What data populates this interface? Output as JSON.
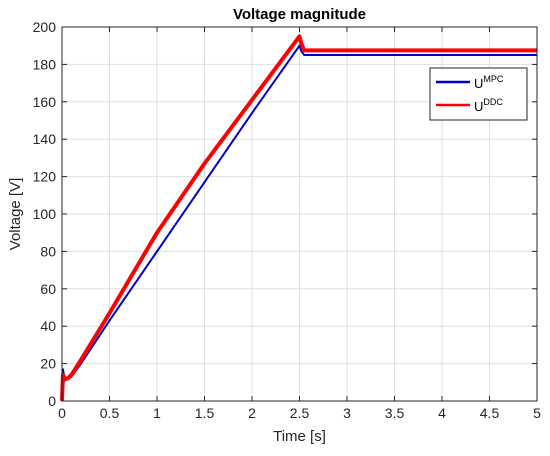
{
  "chart_data": {
    "type": "line",
    "title": "Voltage magnitude",
    "xlabel": "Time [s]",
    "ylabel": "Voltage [V]",
    "xlim": [
      0,
      5
    ],
    "ylim": [
      0,
      200
    ],
    "xticks": [
      0,
      0.5,
      1,
      1.5,
      2,
      2.5,
      3,
      3.5,
      4,
      4.5,
      5
    ],
    "xtick_labels": [
      "0",
      "0.5",
      "1",
      "1.5",
      "2",
      "2.5",
      "3",
      "3.5",
      "4",
      "4.5",
      "5"
    ],
    "yticks": [
      0,
      20,
      40,
      60,
      80,
      100,
      120,
      140,
      160,
      180,
      200
    ],
    "ytick_labels": [
      "0",
      "20",
      "40",
      "60",
      "80",
      "100",
      "120",
      "140",
      "160",
      "180",
      "200"
    ],
    "grid": true,
    "legend_position": "top-right",
    "series": [
      {
        "name": "MPC",
        "legend_base": "U",
        "legend_sup": "MPC",
        "color": "#0000cc",
        "x": [
          0,
          0.01,
          0.03,
          0.06,
          0.1,
          0.2,
          0.5,
          1.0,
          1.5,
          2.0,
          2.5,
          2.52,
          2.55,
          3.0,
          3.5,
          4.0,
          4.5,
          5.0
        ],
        "y": [
          0,
          17,
          11,
          12,
          13,
          20,
          43,
          80,
          117,
          154,
          190,
          187,
          185,
          185,
          185,
          185,
          185,
          185
        ]
      },
      {
        "name": "DDC",
        "legend_base": "U",
        "legend_sup": "DDC",
        "color": "#ff0000",
        "x": [
          0,
          0.01,
          0.03,
          0.06,
          0.1,
          0.2,
          0.5,
          1.0,
          1.5,
          2.0,
          2.5,
          2.52,
          2.55,
          3.0,
          3.5,
          4.0,
          4.5,
          5.0
        ],
        "y": [
          0,
          14,
          12,
          12,
          14,
          22,
          47,
          90,
          127,
          161,
          195,
          191,
          187.5,
          187.5,
          187.5,
          187.5,
          187.5,
          187.5
        ]
      }
    ]
  }
}
